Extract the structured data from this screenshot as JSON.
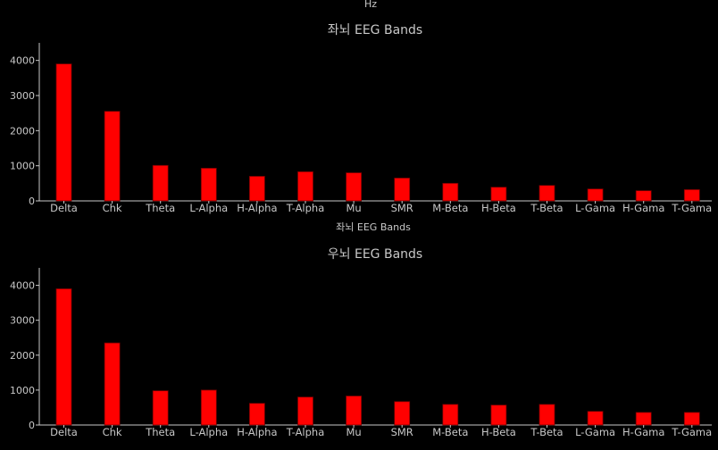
{
  "top_label": "Hz",
  "chart_data": [
    {
      "type": "bar",
      "title": "좌뇌 EEG Bands",
      "xlabel": "좌뇌 EEG Bands",
      "ylabel": "",
      "ylim": [
        0,
        4500
      ],
      "yticks": [
        0,
        1000,
        2000,
        3000,
        4000
      ],
      "grid": false,
      "categories": [
        "Delta",
        "Chk",
        "Theta",
        "L-Alpha",
        "H-Alpha",
        "T-Alpha",
        "Mu",
        "SMR",
        "M-Beta",
        "H-Beta",
        "T-Beta",
        "L-Gama",
        "H-Gama",
        "T-Gama"
      ],
      "values": [
        3900,
        2550,
        1010,
        930,
        700,
        830,
        800,
        650,
        500,
        390,
        440,
        340,
        290,
        320
      ],
      "colors": {
        "bar": "#ff0000",
        "axis": "#c8c8c8",
        "background": "#000000"
      }
    },
    {
      "type": "bar",
      "title": "우뇌 EEG Bands",
      "xlabel": "",
      "ylabel": "",
      "ylim": [
        0,
        4500
      ],
      "yticks": [
        0,
        1000,
        2000,
        3000,
        4000
      ],
      "grid": false,
      "categories": [
        "Delta",
        "Chk",
        "Theta",
        "L-Alpha",
        "H-Alpha",
        "T-Alpha",
        "Mu",
        "SMR",
        "M-Beta",
        "H-Beta",
        "T-Beta",
        "L-Gama",
        "H-Gama",
        "T-Gama"
      ],
      "values": [
        3900,
        2350,
        980,
        1000,
        620,
        800,
        830,
        670,
        590,
        570,
        590,
        390,
        360,
        360
      ],
      "colors": {
        "bar": "#ff0000",
        "axis": "#c8c8c8",
        "background": "#000000"
      }
    }
  ]
}
